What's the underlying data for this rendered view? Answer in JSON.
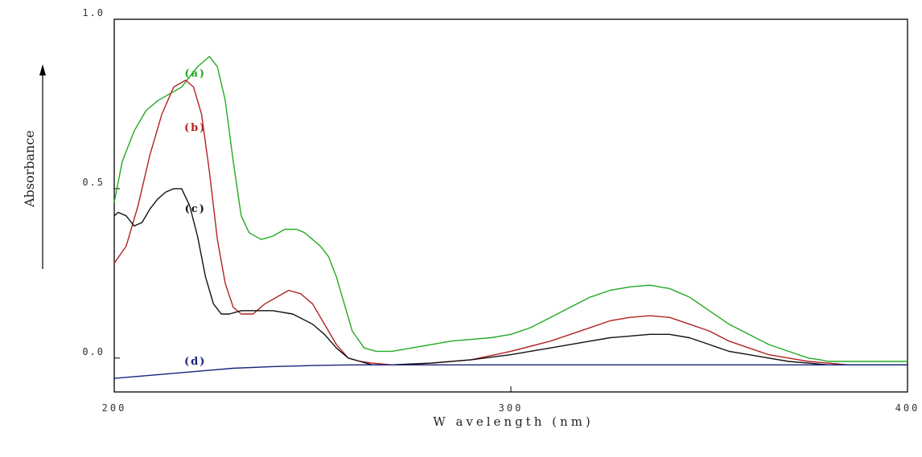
{
  "chart_data": {
    "type": "line",
    "xlabel": "W avelength (nm)",
    "ylabel": "Absorbance",
    "xlim": [
      200,
      400
    ],
    "ylim": [
      -0.1,
      1.0
    ],
    "xticks": [
      200,
      300,
      400
    ],
    "xtick_labels": [
      "200",
      "300",
      "400"
    ],
    "yticks": [
      0.0,
      0.5,
      1.0
    ],
    "ytick_labels": [
      "0.0",
      "0.5",
      "1.0"
    ],
    "grid": false,
    "y_axis_arrow": true,
    "series": [
      {
        "name": "(a)",
        "color": "#22aa22",
        "label_at": [
          218,
          0.84
        ],
        "x": [
          200,
          202,
          205,
          208,
          211,
          214,
          217,
          219,
          221,
          223,
          224,
          226,
          228,
          230,
          232,
          234,
          237,
          240,
          243,
          246,
          248,
          250,
          252,
          254,
          256,
          258,
          260,
          263,
          266,
          270,
          275,
          280,
          285,
          290,
          295,
          300,
          305,
          310,
          315,
          320,
          325,
          330,
          335,
          340,
          345,
          350,
          355,
          360,
          365,
          370,
          375,
          378,
          380,
          385,
          390,
          395,
          400
        ],
        "y": [
          0.46,
          0.58,
          0.67,
          0.73,
          0.76,
          0.78,
          0.8,
          0.83,
          0.86,
          0.88,
          0.89,
          0.86,
          0.76,
          0.58,
          0.42,
          0.37,
          0.35,
          0.36,
          0.38,
          0.38,
          0.37,
          0.35,
          0.33,
          0.3,
          0.24,
          0.16,
          0.08,
          0.03,
          0.02,
          0.02,
          0.03,
          0.04,
          0.05,
          0.055,
          0.06,
          0.07,
          0.09,
          0.12,
          0.15,
          0.18,
          0.2,
          0.21,
          0.215,
          0.205,
          0.18,
          0.14,
          0.1,
          0.07,
          0.04,
          0.02,
          0.0,
          -0.005,
          -0.01,
          -0.01,
          -0.01,
          -0.01,
          -0.01
        ]
      },
      {
        "name": "(b)",
        "color": "#b22222",
        "label_at": [
          218,
          0.68
        ],
        "x": [
          200,
          203,
          206,
          209,
          212,
          215,
          218,
          220,
          222,
          224,
          226,
          228,
          230,
          232,
          235,
          238,
          241,
          244,
          247,
          250,
          253,
          256,
          259,
          262,
          265,
          270,
          280,
          290,
          300,
          310,
          320,
          325,
          330,
          335,
          340,
          345,
          350,
          355,
          360,
          365,
          370,
          375,
          380,
          385,
          390,
          400
        ],
        "y": [
          0.28,
          0.33,
          0.45,
          0.6,
          0.72,
          0.8,
          0.82,
          0.8,
          0.72,
          0.55,
          0.35,
          0.22,
          0.15,
          0.13,
          0.13,
          0.16,
          0.18,
          0.2,
          0.19,
          0.16,
          0.1,
          0.04,
          0.0,
          -0.01,
          -0.015,
          -0.02,
          -0.015,
          -0.005,
          0.02,
          0.05,
          0.09,
          0.11,
          0.12,
          0.125,
          0.12,
          0.1,
          0.08,
          0.05,
          0.03,
          0.01,
          0.0,
          -0.01,
          -0.015,
          -0.02,
          -0.02,
          -0.02
        ]
      },
      {
        "name": "(c)",
        "color": "#111111",
        "label_at": [
          218,
          0.44
        ],
        "x": [
          200,
          201,
          203,
          205,
          207,
          209,
          211,
          213,
          215,
          217,
          219,
          221,
          223,
          225,
          227,
          229,
          232,
          235,
          240,
          245,
          250,
          253,
          256,
          259,
          262,
          265,
          270,
          280,
          290,
          300,
          310,
          320,
          325,
          330,
          335,
          340,
          345,
          350,
          355,
          360,
          365,
          370,
          375,
          380,
          390,
          400
        ],
        "y": [
          0.42,
          0.43,
          0.42,
          0.39,
          0.4,
          0.44,
          0.47,
          0.49,
          0.5,
          0.5,
          0.45,
          0.36,
          0.24,
          0.16,
          0.13,
          0.13,
          0.14,
          0.14,
          0.14,
          0.13,
          0.1,
          0.07,
          0.03,
          0.0,
          -0.01,
          -0.02,
          -0.02,
          -0.015,
          -0.005,
          0.01,
          0.03,
          0.05,
          0.06,
          0.065,
          0.07,
          0.07,
          0.06,
          0.04,
          0.02,
          0.01,
          0.0,
          -0.01,
          -0.015,
          -0.02,
          -0.02,
          -0.02
        ]
      },
      {
        "name": "(d)",
        "color": "#1a237e",
        "label_at": [
          218,
          -0.01
        ],
        "x": [
          200,
          210,
          220,
          230,
          240,
          250,
          260,
          270,
          280,
          290,
          300,
          320,
          340,
          360,
          380,
          400
        ],
        "y": [
          -0.06,
          -0.05,
          -0.04,
          -0.03,
          -0.025,
          -0.022,
          -0.02,
          -0.02,
          -0.02,
          -0.02,
          -0.02,
          -0.02,
          -0.02,
          -0.02,
          -0.02,
          -0.02
        ]
      }
    ]
  }
}
